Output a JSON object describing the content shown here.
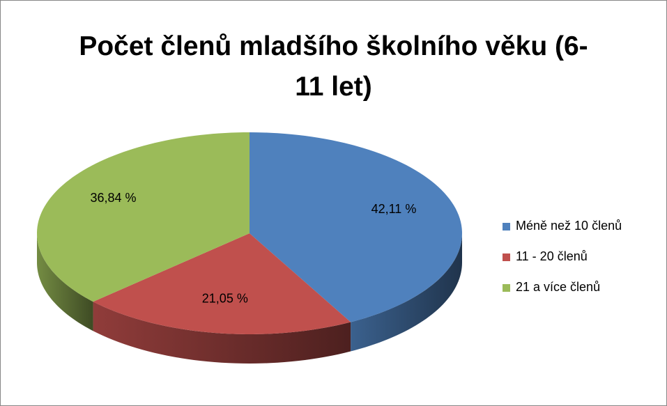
{
  "chart_data": {
    "type": "pie",
    "title": "Počet členů mladšího školního věku (6-11 let)",
    "categories": [
      "Méně než 10 členů",
      "11 - 20 členů",
      "21 a více členů"
    ],
    "values": [
      42.11,
      21.05,
      36.84
    ],
    "value_labels": [
      "42,11 %",
      "21,05 %",
      "36,84 %"
    ],
    "colors": [
      "#4f81bd",
      "#c0504d",
      "#9bbb59"
    ],
    "legend": "right"
  }
}
